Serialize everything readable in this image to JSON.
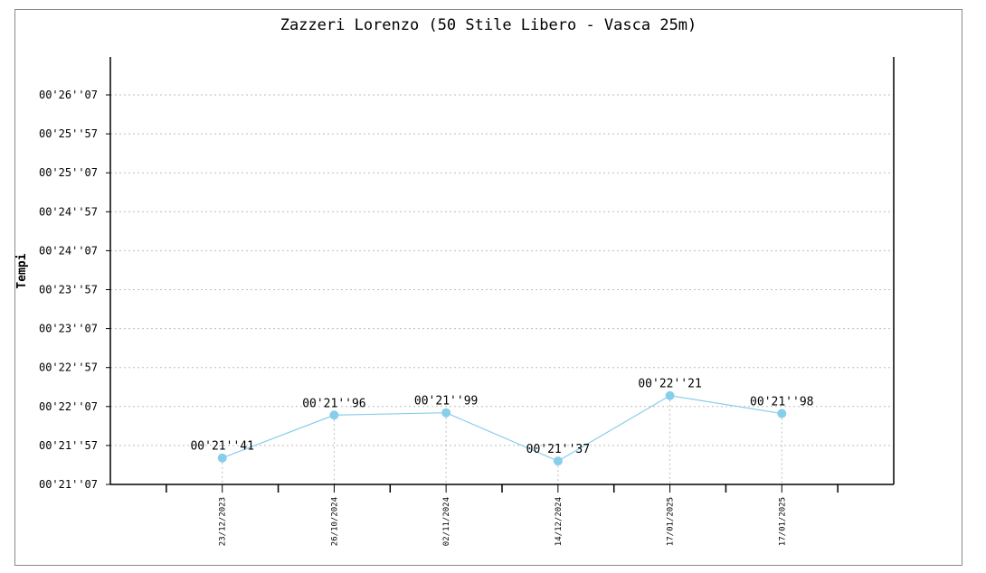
{
  "chart_data": {
    "type": "line",
    "title": "Zazzeri Lorenzo (50 Stile Libero - Vasca 25m)",
    "ylabel": "Tempi",
    "xlabel": "",
    "y_ticks": [
      "00'21''07",
      "00'21''57",
      "00'22''07",
      "00'22''57",
      "00'23''07",
      "00'23''57",
      "00'24''07",
      "00'24''57",
      "00'25''07",
      "00'25''57",
      "00'26''07"
    ],
    "x": [
      "23/12/2023",
      "26/10/2024",
      "02/11/2024",
      "14/12/2024",
      "17/01/2025",
      "17/01/2025"
    ],
    "values": [
      21.41,
      21.96,
      21.99,
      21.37,
      22.21,
      21.98
    ],
    "value_labels": [
      "00'21''41",
      "00'21''96",
      "00'21''99",
      "00'21''37",
      "00'22''21",
      "00'21''98"
    ],
    "ylim_ticks_index": [
      0,
      10
    ],
    "grid": true,
    "series_color": "#87ceeb"
  }
}
